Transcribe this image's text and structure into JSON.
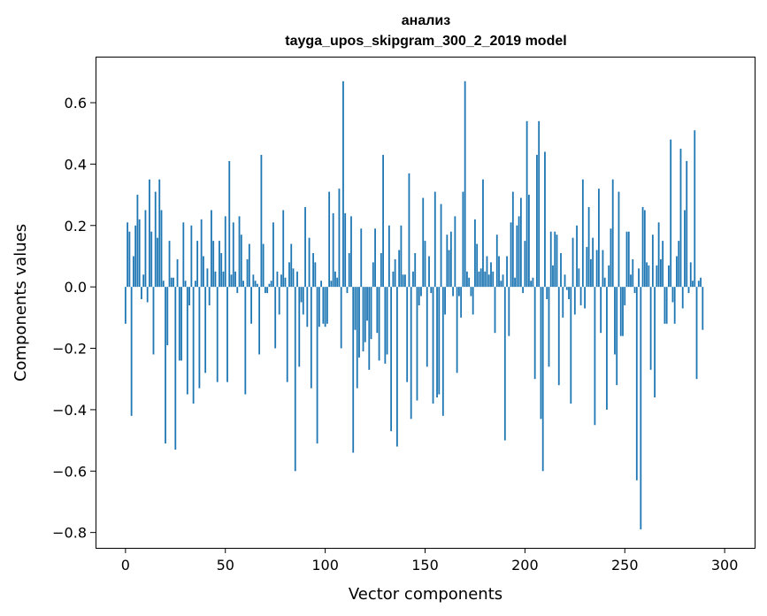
{
  "chart_data": {
    "type": "bar",
    "title": "анализ",
    "subtitle": "tayga_upos_skipgram_300_2_2019 model",
    "xlabel": "Vector components",
    "ylabel": "Components values",
    "xlim": [
      -15,
      315
    ],
    "ylim": [
      -0.85,
      0.75
    ],
    "xticks": [
      0,
      50,
      100,
      150,
      200,
      250,
      300
    ],
    "xtick_labels": [
      "0",
      "50",
      "100",
      "150",
      "200",
      "250",
      "300"
    ],
    "yticks": [
      -0.8,
      -0.6,
      -0.4,
      -0.2,
      0.0,
      0.2,
      0.4,
      0.6
    ],
    "ytick_labels": [
      "−0.8",
      "−0.6",
      "−0.4",
      "−0.2",
      "0.0",
      "0.2",
      "0.4",
      "0.6"
    ],
    "bar_color": "#1f77b4",
    "grid": false,
    "values": [
      -0.12,
      0.21,
      0.18,
      -0.42,
      0.1,
      0.2,
      0.3,
      0.22,
      -0.04,
      0.04,
      0.25,
      -0.05,
      0.35,
      0.18,
      -0.22,
      0.31,
      0.16,
      0.35,
      0.25,
      0.02,
      -0.51,
      -0.19,
      0.15,
      0.03,
      0.03,
      -0.53,
      0.09,
      -0.24,
      -0.24,
      0.21,
      0.02,
      -0.35,
      -0.06,
      0.2,
      -0.38,
      0.02,
      0.15,
      -0.33,
      0.22,
      0.1,
      -0.28,
      0.06,
      -0.06,
      0.25,
      0.15,
      0.05,
      -0.31,
      0.15,
      0.11,
      0.05,
      0.23,
      -0.31,
      0.41,
      0.04,
      0.21,
      0.05,
      -0.02,
      0.23,
      0.17,
      0.02,
      -0.35,
      0.09,
      0.14,
      -0.12,
      0.04,
      0.02,
      0.01,
      -0.22,
      0.43,
      0.14,
      -0.02,
      -0.02,
      0.01,
      0.02,
      0.21,
      -0.2,
      0.05,
      -0.09,
      0.04,
      0.25,
      0.03,
      -0.31,
      0.08,
      0.14,
      0.06,
      -0.6,
      0.05,
      -0.26,
      -0.05,
      -0.09,
      0.26,
      -0.13,
      0.16,
      -0.33,
      0.11,
      0.08,
      -0.51,
      -0.13,
      0.02,
      -0.12,
      -0.13,
      -0.12,
      0.31,
      0.02,
      0.24,
      0.05,
      0.03,
      0.32,
      -0.2,
      0.67,
      0.24,
      -0.02,
      0.11,
      0.23,
      -0.54,
      -0.14,
      -0.33,
      -0.23,
      0.19,
      -0.21,
      -0.18,
      -0.11,
      -0.27,
      -0.17,
      0.08,
      0.19,
      -0.15,
      -0.24,
      0.11,
      0.43,
      -0.25,
      -0.22,
      0.2,
      -0.47,
      0.05,
      0.09,
      -0.52,
      0.12,
      0.2,
      0.04,
      0.04,
      -0.31,
      0.37,
      -0.43,
      0.05,
      0.11,
      -0.37,
      -0.06,
      -0.03,
      0.29,
      0.15,
      -0.26,
      0.1,
      -0.02,
      -0.38,
      0.31,
      -0.36,
      -0.35,
      0.27,
      -0.42,
      -0.09,
      0.17,
      0.12,
      0.18,
      -0.03,
      0.23,
      -0.28,
      -0.03,
      -0.1,
      0.31,
      0.67,
      0.05,
      0.03,
      -0.03,
      -0.09,
      0.22,
      0.14,
      0.05,
      0.06,
      0.35,
      0.05,
      0.1,
      0.04,
      0.08,
      0.05,
      -0.15,
      0.17,
      0.1,
      0.02,
      0.04,
      -0.5,
      0.1,
      -0.16,
      0.21,
      0.31,
      0.03,
      0.2,
      0.23,
      0.29,
      -0.02,
      0.15,
      0.54,
      0.3,
      0.02,
      0.03,
      -0.3,
      0.43,
      0.54,
      -0.43,
      -0.6,
      0.44,
      -0.04,
      -0.26,
      0.18,
      0.07,
      0.18,
      0.17,
      -0.32,
      0.11,
      -0.1,
      0.04,
      -0.01,
      -0.04,
      -0.38,
      0.16,
      -0.09,
      0.2,
      0.06,
      -0.06,
      0.35,
      -0.07,
      0.13,
      0.26,
      0.09,
      0.16,
      -0.45,
      0.12,
      0.32,
      -0.15,
      0.12,
      0.03,
      -0.4,
      0.07,
      0.19,
      0.35,
      -0.22,
      -0.32,
      0.31,
      -0.16,
      -0.16,
      -0.06,
      0.18,
      0.18,
      0.04,
      0.09,
      -0.02,
      -0.63,
      0.06,
      -0.79,
      0.26,
      0.25,
      0.08,
      0.07,
      -0.27,
      0.17,
      -0.36,
      0.07,
      0.21,
      0.09,
      0.15,
      -0.12,
      -0.12,
      0.07,
      0.48,
      -0.05,
      -0.12,
      0.1,
      0.15,
      0.45,
      -0.07,
      0.25,
      0.41,
      -0.02,
      0.08,
      0.02,
      0.51,
      -0.3,
      0.02,
      0.03,
      -0.14
    ]
  }
}
